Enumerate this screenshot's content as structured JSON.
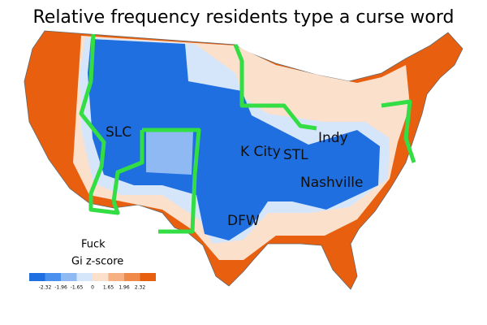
{
  "title": "Relative frequency residents type a curse word",
  "cities": [
    "SLC",
    "K City",
    "STL",
    "Indy",
    "Nashville",
    "DFW"
  ],
  "legend": {
    "word": "Fuck",
    "title": "Gi z-score",
    "colors": [
      "#1f6fe0",
      "#4a90ee",
      "#8fb9f3",
      "#d6e6fa",
      "#fbe0cc",
      "#f7b081",
      "#f08a4a",
      "#e8600f"
    ],
    "ticks": [
      -2.32,
      -1.96,
      -1.65,
      0,
      1.65,
      1.96,
      2.32
    ]
  }
}
